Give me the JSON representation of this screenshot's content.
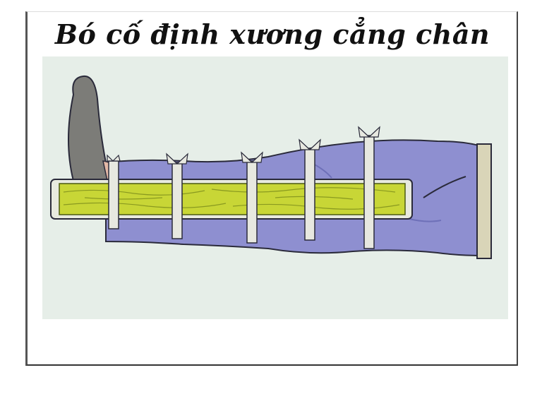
{
  "title": "Bó cố định xương cẳng chân",
  "illustration": {
    "icon": "leg-splint-illustration",
    "colors": {
      "background": "#e6eee8",
      "trouser": "#8e8fd0",
      "trouser_shadow": "#6e70b8",
      "splint_wood": "#c8d636",
      "splint_edge": "#e8eadf",
      "shoe": "#7c7c78",
      "bandage": "#e7e8e0",
      "outline": "#2a2a3a"
    },
    "bandage_count": 5
  }
}
